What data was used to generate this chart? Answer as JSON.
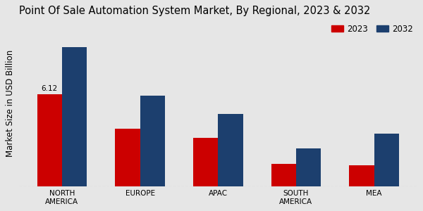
{
  "title": "Point Of Sale Automation System Market, By Regional, 2023 & 2032",
  "ylabel": "Market Size in USD Billion",
  "categories": [
    "NORTH\nAMERICA",
    "EUROPE",
    "APAC",
    "SOUTH\nAMERICA",
    "MEA"
  ],
  "values_2023": [
    6.12,
    3.8,
    3.2,
    1.5,
    1.4
  ],
  "values_2032": [
    9.2,
    6.0,
    4.8,
    2.5,
    3.5
  ],
  "annotation_text": "6.12",
  "annotation_index": 0,
  "color_2023": "#cc0000",
  "color_2032": "#1c3f6e",
  "legend_labels": [
    "2023",
    "2032"
  ],
  "background_color": "#e6e6e6",
  "bar_width": 0.32,
  "title_fontsize": 10.5,
  "axis_label_fontsize": 8.5,
  "tick_fontsize": 7.5,
  "legend_fontsize": 8.5,
  "ylim": [
    0,
    11
  ]
}
